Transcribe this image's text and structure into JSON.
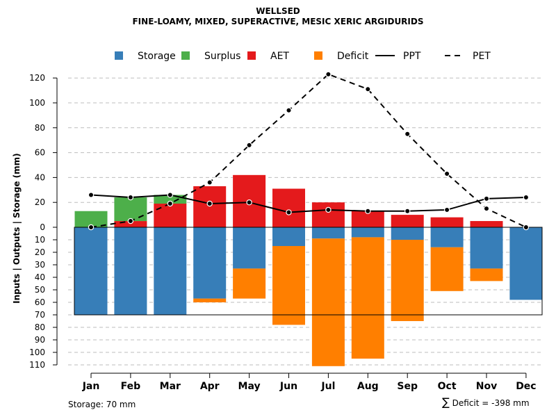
{
  "title": "WELLSED",
  "subtitle": "FINE-LOAMY, MIXED, SUPERACTIVE, MESIC XERIC ARGIDURIDS",
  "footer": {
    "storage_text": "Storage: 70 mm",
    "deficit_symbol": "∑",
    "deficit_text": "Deficit = -398 mm"
  },
  "chart_data": {
    "type": "bar",
    "title": "WELLSED",
    "subtitle": "FINE-LOAMY, MIXED, SUPERACTIVE, MESIC XERIC ARGIDURIDS",
    "ylabel": "Inputs | Outputs | Storage    (mm)",
    "xlabel": "",
    "categories": [
      "Jan",
      "Feb",
      "Mar",
      "Apr",
      "May",
      "Jun",
      "Jul",
      "Aug",
      "Sep",
      "Oct",
      "Nov",
      "Dec"
    ],
    "ylim": [
      -110,
      130
    ],
    "yticks": [
      {
        "value": 120,
        "label": "120"
      },
      {
        "value": 100,
        "label": "100"
      },
      {
        "value": 80,
        "label": "80"
      },
      {
        "value": 60,
        "label": "60"
      },
      {
        "value": 40,
        "label": "40"
      },
      {
        "value": 20,
        "label": "20"
      },
      {
        "value": 0,
        "label": "0"
      },
      {
        "value": -10,
        "label": "10"
      },
      {
        "value": -20,
        "label": "20"
      },
      {
        "value": -30,
        "label": "30"
      },
      {
        "value": -40,
        "label": "40"
      },
      {
        "value": -50,
        "label": "50"
      },
      {
        "value": -60,
        "label": "60"
      },
      {
        "value": -70,
        "label": "70"
      },
      {
        "value": -80,
        "label": "80"
      },
      {
        "value": -90,
        "label": "90"
      },
      {
        "value": -100,
        "label": "100"
      },
      {
        "value": -110,
        "label": "110"
      }
    ],
    "storage_capacity": 70,
    "legend": [
      {
        "name": "Storage",
        "type": "square",
        "color": "#377EB8"
      },
      {
        "name": "Surplus",
        "type": "square",
        "color": "#4DAF4A"
      },
      {
        "name": "AET",
        "type": "square",
        "color": "#E41A1C"
      },
      {
        "name": "Deficit",
        "type": "square",
        "color": "#FF7F00"
      },
      {
        "name": "PPT",
        "type": "solid-line",
        "color": "#000000"
      },
      {
        "name": "PET",
        "type": "dashed-line",
        "color": "#000000"
      }
    ],
    "series": [
      {
        "name": "Storage",
        "kind": "bar-below",
        "color": "#377EB8",
        "values": [
          70,
          70,
          70,
          57,
          33,
          15,
          9,
          8,
          10,
          16,
          33,
          58
        ]
      },
      {
        "name": "Deficit",
        "kind": "bar-below-stacked",
        "color": "#FF7F00",
        "values": [
          0,
          0,
          0,
          3,
          24,
          63,
          102,
          97,
          65,
          35,
          10,
          0
        ]
      },
      {
        "name": "AET",
        "kind": "bar-above",
        "color": "#E41A1C",
        "values": [
          0,
          5,
          19,
          33,
          42,
          31,
          20,
          13,
          10,
          8,
          5,
          0
        ]
      },
      {
        "name": "Surplus",
        "kind": "bar-above-stacked",
        "color": "#4DAF4A",
        "values": [
          13,
          19,
          7,
          0,
          0,
          0,
          0,
          0,
          0,
          0,
          0,
          0
        ]
      },
      {
        "name": "PPT",
        "kind": "line-solid",
        "color": "#000000",
        "values": [
          26,
          24,
          26,
          19,
          20,
          12,
          14,
          13,
          13,
          14,
          23,
          24
        ]
      },
      {
        "name": "PET",
        "kind": "line-dashed",
        "color": "#000000",
        "values": [
          0,
          5,
          19,
          36,
          66,
          94,
          123,
          111,
          75,
          43,
          15,
          0
        ]
      }
    ]
  }
}
